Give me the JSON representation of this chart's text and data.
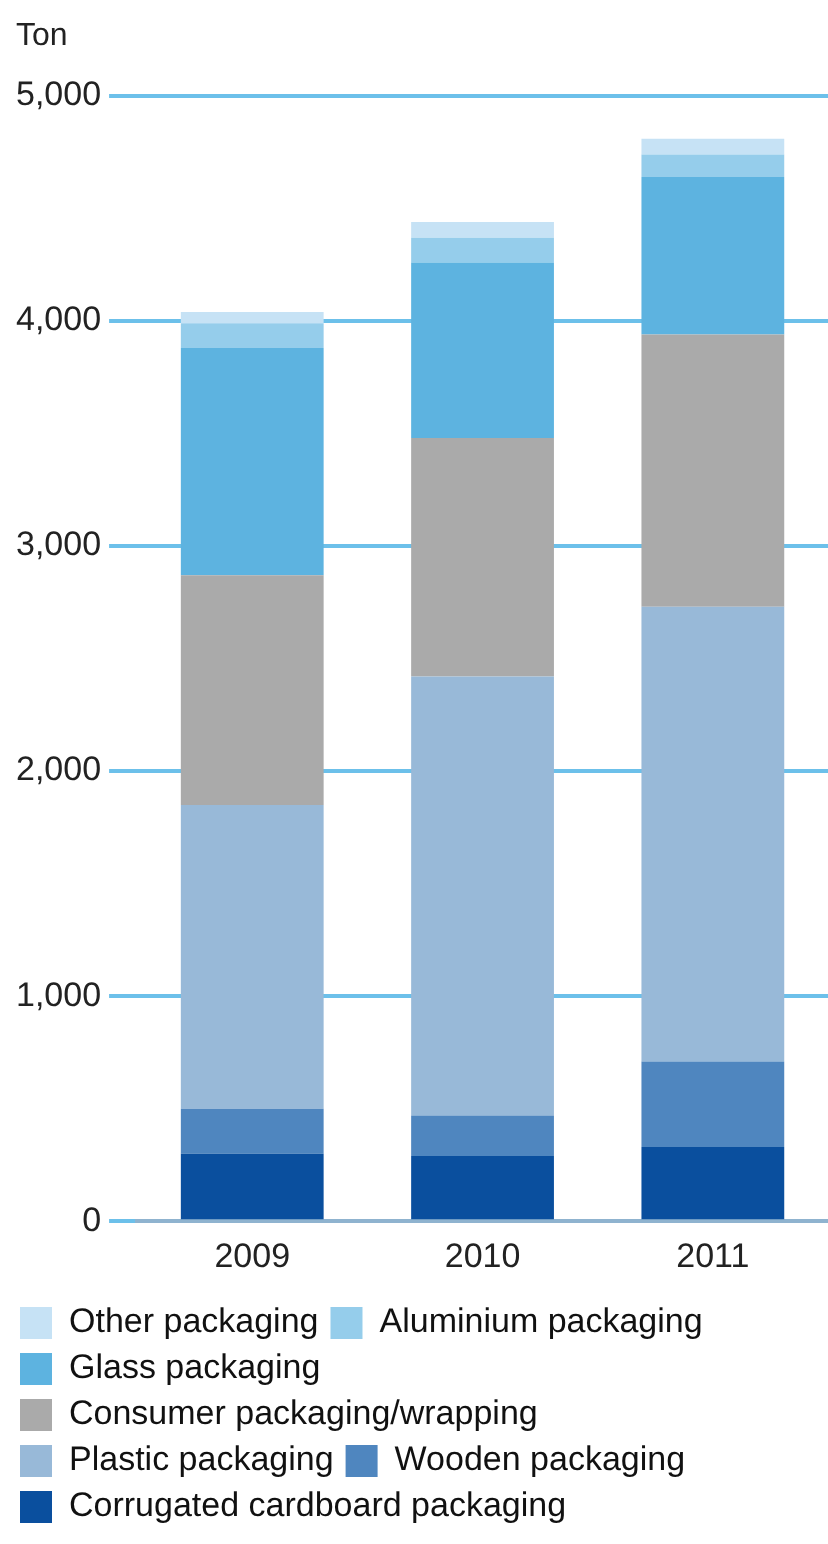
{
  "chart_data": {
    "type": "bar",
    "stacked": true,
    "ylabel": "Ton",
    "categories": [
      "2009",
      "2010",
      "2011"
    ],
    "series": [
      {
        "name": "Corrugated cardboard packaging",
        "color": "#0a4f9e",
        "values": [
          300,
          290,
          330
        ]
      },
      {
        "name": "Wooden packaging",
        "color": "#4f86bf",
        "values": [
          200,
          180,
          380
        ]
      },
      {
        "name": "Plastic packaging",
        "color": "#98b9d8",
        "values": [
          1350,
          1950,
          2020
        ]
      },
      {
        "name": "Consumer packaging/wrapping",
        "color": "#aaaaaa",
        "values": [
          1020,
          1060,
          1210
        ]
      },
      {
        "name": "Glass packaging",
        "color": "#5db3e0",
        "values": [
          1010,
          780,
          700
        ]
      },
      {
        "name": "Aluminium packaging",
        "color": "#95cdeb",
        "values": [
          110,
          110,
          100
        ]
      },
      {
        "name": "Other packaging",
        "color": "#c6e2f5",
        "values": [
          50,
          70,
          70
        ]
      }
    ],
    "ylim": [
      0,
      5000
    ],
    "yticks": [
      0,
      {
        "value": 1000,
        "label": "1,000"
      },
      {
        "value": 2000,
        "label": "2,000"
      },
      {
        "value": 3000,
        "label": "3,000"
      },
      {
        "value": 4000,
        "label": "4,000"
      },
      {
        "value": 5000,
        "label": "5,000"
      }
    ],
    "grid": "y",
    "legend": "bottom"
  }
}
